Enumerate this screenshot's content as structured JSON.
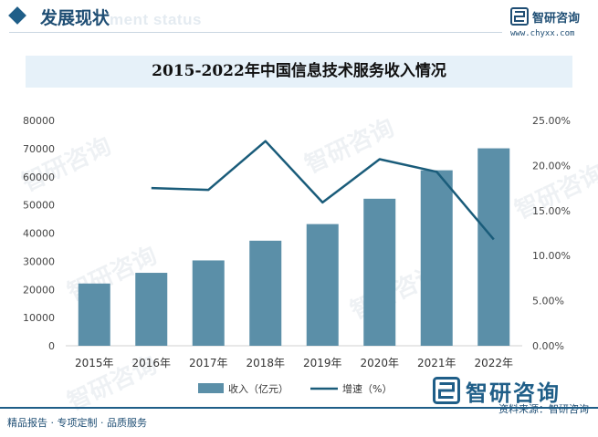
{
  "header": {
    "title": "发展现状",
    "watermark": "ment status"
  },
  "brand": {
    "name": "智研咨询",
    "url": "www.chyxx.com"
  },
  "chart_data": {
    "type": "bar",
    "title": "2015-2022年中国信息技术服务收入情况",
    "categories": [
      "2015年",
      "2016年",
      "2017年",
      "2018年",
      "2019年",
      "2020年",
      "2021年",
      "2022年"
    ],
    "series": [
      {
        "name": "收入（亿元）",
        "type": "bar",
        "axis": "left",
        "color": "#5b8fa8",
        "values": [
          22100,
          25900,
          30300,
          37300,
          43200,
          52200,
          62300,
          70100
        ]
      },
      {
        "name": "增速（%）",
        "type": "line",
        "axis": "right",
        "color": "#1a5c7a",
        "values": [
          null,
          17.5,
          17.3,
          22.7,
          15.9,
          20.7,
          19.3,
          11.8
        ]
      }
    ],
    "y_left": {
      "min": 0,
      "max": 80000,
      "ticks": [
        "0",
        "10000",
        "20000",
        "30000",
        "40000",
        "50000",
        "60000",
        "70000",
        "80000"
      ]
    },
    "y_right": {
      "min": 0,
      "max": 25,
      "ticks": [
        "0.00%",
        "5.00%",
        "10.00%",
        "15.00%",
        "20.00%",
        "25.00%"
      ]
    },
    "grid": false,
    "legend_position": "bottom-center"
  },
  "footer": {
    "left": "精品报告 · 专项定制 · 品质服务",
    "source": "资料来源：智研咨询"
  }
}
